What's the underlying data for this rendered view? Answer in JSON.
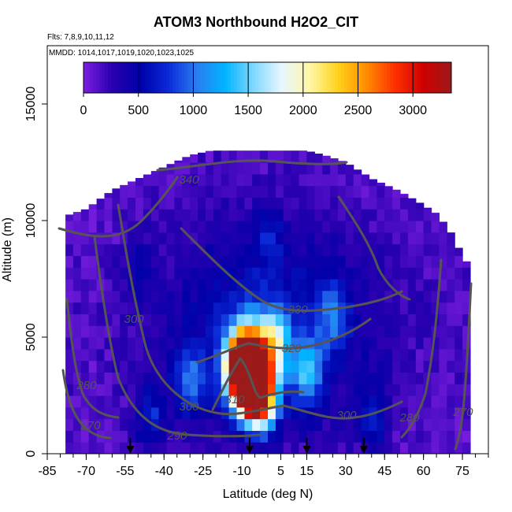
{
  "chart_data": {
    "type": "heatmap",
    "title": "ATOM3 Northbound H2O2_CIT",
    "notes": {
      "flights": "Flts: 7,8,9,10,11,12",
      "mmdd": "MMDD: 1014,1017,1019,1020,1023,1025"
    },
    "xlabel": "Latitude (deg N)",
    "ylabel": "Altitude (m)",
    "xlim": [
      -85,
      85
    ],
    "ylim": [
      0,
      17500
    ],
    "xticks": [
      -85,
      -70,
      -55,
      -40,
      -25,
      -10,
      5,
      15,
      30,
      45,
      60,
      75
    ],
    "yticks": [
      0,
      5000,
      10000,
      15000
    ],
    "colorbar": {
      "ticks": [
        0,
        500,
        1000,
        1500,
        2000,
        2500,
        3000
      ],
      "range": [
        0,
        3350
      ],
      "colors": [
        "#7b1fe0",
        "#2a00b0",
        "#0000a8",
        "#0a2ad8",
        "#2a7cf0",
        "#00b4ff",
        "#7fd8ff",
        "#e8f6ff",
        "#fff6a8",
        "#ffd21a",
        "#ff8c00",
        "#ff3000",
        "#d00000",
        "#9b1a1a"
      ]
    },
    "profile": {
      "lat": [
        -78,
        -70,
        -60,
        -50,
        -40,
        -30,
        -22,
        -15,
        -8,
        0,
        8,
        15,
        22,
        30,
        40,
        50,
        58,
        65,
        70,
        75,
        78
      ],
      "top_alt": [
        10200,
        10500,
        11300,
        11800,
        12300,
        12800,
        13000,
        13000,
        13000,
        13000,
        13000,
        13000,
        12800,
        12500,
        11800,
        11300,
        10800,
        10300,
        9600,
        8500,
        8000
      ]
    },
    "grid": {
      "lat_step": 3,
      "alt_step": 500,
      "background_value": 80,
      "features": [
        {
          "lat": -7,
          "alt": 3200,
          "value": 3200
        },
        {
          "lat": -8,
          "alt": 4200,
          "value": 2300
        },
        {
          "lat": -3,
          "alt": 2600,
          "value": 3000
        },
        {
          "lat": -12,
          "alt": 3600,
          "value": 1600
        },
        {
          "lat": 2,
          "alt": 4800,
          "value": 1400
        },
        {
          "lat": 15,
          "alt": 3500,
          "value": 900
        },
        {
          "lat": -30,
          "alt": 3000,
          "value": 700
        },
        {
          "lat": -45,
          "alt": 1500,
          "value": 500
        },
        {
          "lat": 25,
          "alt": 6000,
          "value": 600
        },
        {
          "lat": 40,
          "alt": 1500,
          "value": 500
        },
        {
          "lat": 0,
          "alt": 9500,
          "value": 350
        },
        {
          "lat": -50,
          "alt": 8000,
          "value": 300
        }
      ]
    },
    "contour_labels": [
      "340",
      "330",
      "320",
      "310",
      "300",
      "300",
      "300",
      "290",
      "280",
      "280",
      "270",
      "270"
    ],
    "flight_arrows_lat": [
      -53,
      -7,
      15,
      37
    ]
  }
}
